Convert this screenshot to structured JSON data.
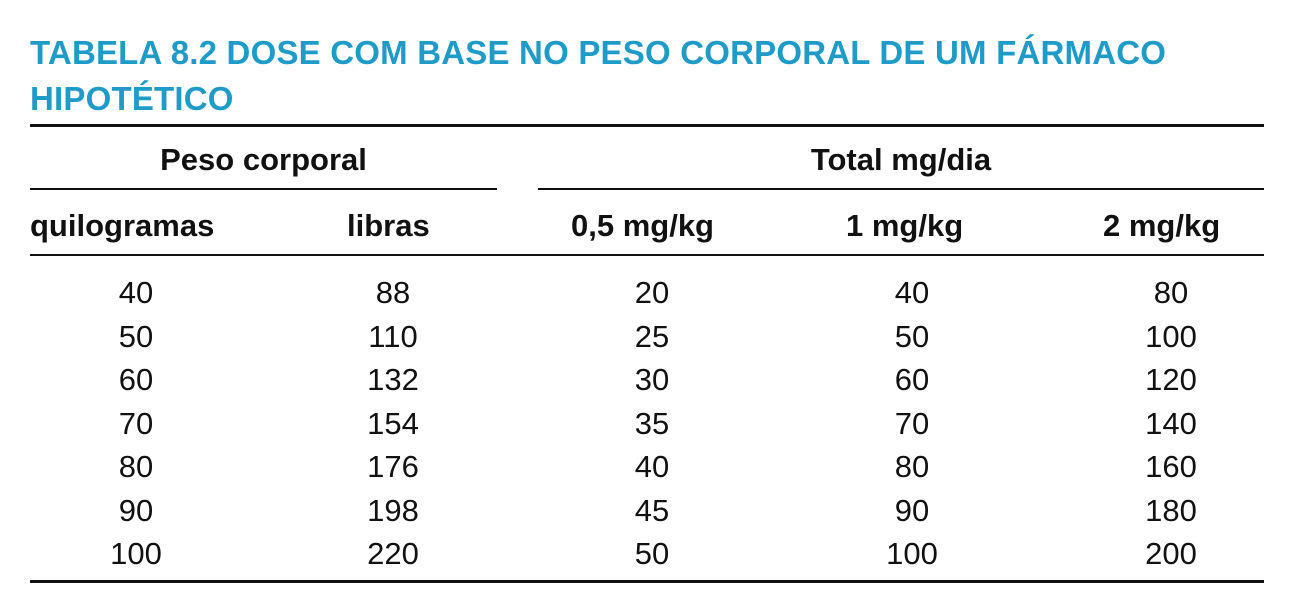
{
  "table": {
    "title": "TABELA 8.2 DOSE COM BASE NO PESO CORPORAL DE UM FÁRMACO HIPOTÉTICO",
    "group_headers": {
      "left": "Peso corporal",
      "right": "Total mg/dia"
    },
    "column_headers": [
      "quilogramas",
      "libras",
      "0,5 mg/kg",
      "1 mg/kg",
      "2 mg/kg"
    ],
    "rows": [
      [
        "40",
        "88",
        "20",
        "40",
        "80"
      ],
      [
        "50",
        "110",
        "25",
        "50",
        "100"
      ],
      [
        "60",
        "132",
        "30",
        "60",
        "120"
      ],
      [
        "70",
        "154",
        "35",
        "70",
        "140"
      ],
      [
        "80",
        "176",
        "40",
        "80",
        "160"
      ],
      [
        "90",
        "198",
        "45",
        "90",
        "180"
      ],
      [
        "100",
        "220",
        "50",
        "100",
        "200"
      ]
    ]
  },
  "colors": {
    "title": "#1f9bc8",
    "text": "#111111",
    "rules": "#111111"
  }
}
